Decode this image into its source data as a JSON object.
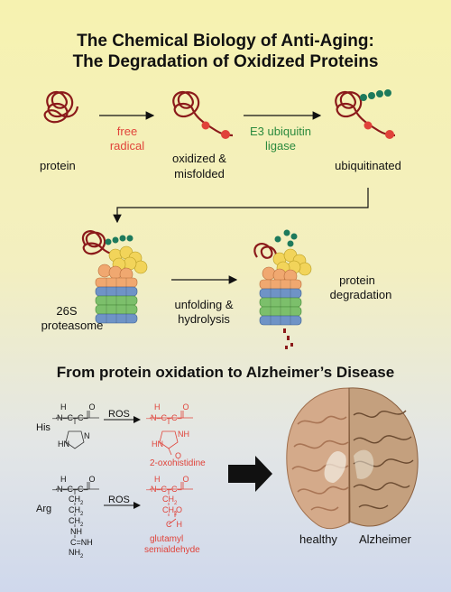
{
  "header": {
    "title_line1": "The Chemical Biology of Anti-Aging:",
    "title_line2": "The Degradation of Oxidized Proteins"
  },
  "pathway": {
    "protein": "protein",
    "free_radical_1": "free",
    "free_radical_2": "radical",
    "oxidized_1": "oxidized &",
    "oxidized_2": "misfolded",
    "e3_1": "E3 ubiquitin",
    "e3_2": "ligase",
    "ubiquitinated": "ubiquitinated",
    "proteasome_1": "26S",
    "proteasome_2": "proteasome",
    "unfolding_1": "unfolding &",
    "unfolding_2": "hydrolysis",
    "degradation_1": "protein",
    "degradation_2": "degradation"
  },
  "section2": {
    "heading": "From protein oxidation to Alzheimer’s Disease",
    "his_label": "His",
    "arg_label": "Arg",
    "ros_1": "ROS",
    "ros_2": "ROS",
    "product_1": "2-oxohistidine",
    "product_2_line1": "glutamyl",
    "product_2_line2": "semialdehyde",
    "brain_healthy": "healthy",
    "brain_alzheimer": "Alzheimer"
  },
  "colors": {
    "protein_chain": "#8b1a1a",
    "oxidation_dot": "#e0433a",
    "ubiquitin": "#1d7a5c",
    "proteasome_yellow": "#f2d45a",
    "proteasome_orange": "#f0a870",
    "proteasome_blue": "#6f93c6",
    "proteasome_green": "#7cbf6b"
  }
}
